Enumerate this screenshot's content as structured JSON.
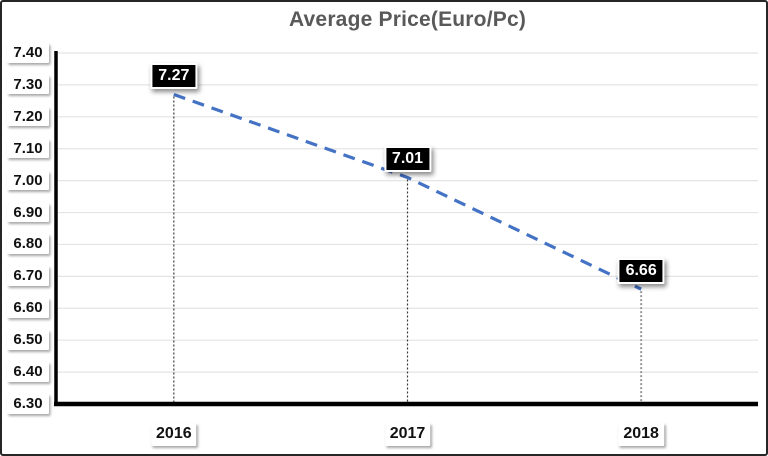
{
  "chart_data": {
    "type": "line",
    "title": "Average Price(Euro/Pc)",
    "categories": [
      "2016",
      "2017",
      "2018"
    ],
    "series": [
      {
        "name": "Average Price (Euro/Pc)",
        "values": [
          7.27,
          7.01,
          6.66
        ]
      }
    ],
    "data_labels": [
      "7.27",
      "7.01",
      "6.66"
    ],
    "ytick_labels": [
      "7.40",
      "7.30",
      "7.20",
      "7.10",
      "7.00",
      "6.90",
      "6.80",
      "6.70",
      "6.60",
      "6.50",
      "6.40",
      "6.30"
    ],
    "ylim": [
      6.3,
      7.4
    ],
    "grid": true,
    "legend": "none",
    "line_style": "dashed",
    "colors": {
      "line": "#4472C4",
      "title": "#595959",
      "gridline": "#E4E4E4",
      "axis": "#000000",
      "data_label_bg": "#000000",
      "data_label_text": "#FFFFFF",
      "drop_lines": [
        "#3A3A3A",
        "#3A3A3A",
        "#9A9A9A"
      ]
    }
  }
}
